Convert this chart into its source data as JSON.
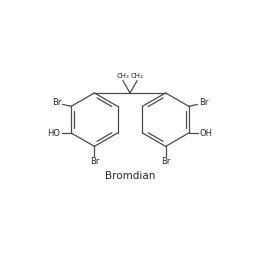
{
  "title": "Bromdian",
  "title_fontsize": 7.5,
  "background_color": "#ffffff",
  "line_color": "#4a4a4a",
  "text_color": "#2a2a2a",
  "line_width": 0.9,
  "figsize": [
    2.6,
    2.8
  ],
  "dpi": 100,
  "xlim": [
    0,
    10
  ],
  "ylim": [
    0,
    10
  ]
}
